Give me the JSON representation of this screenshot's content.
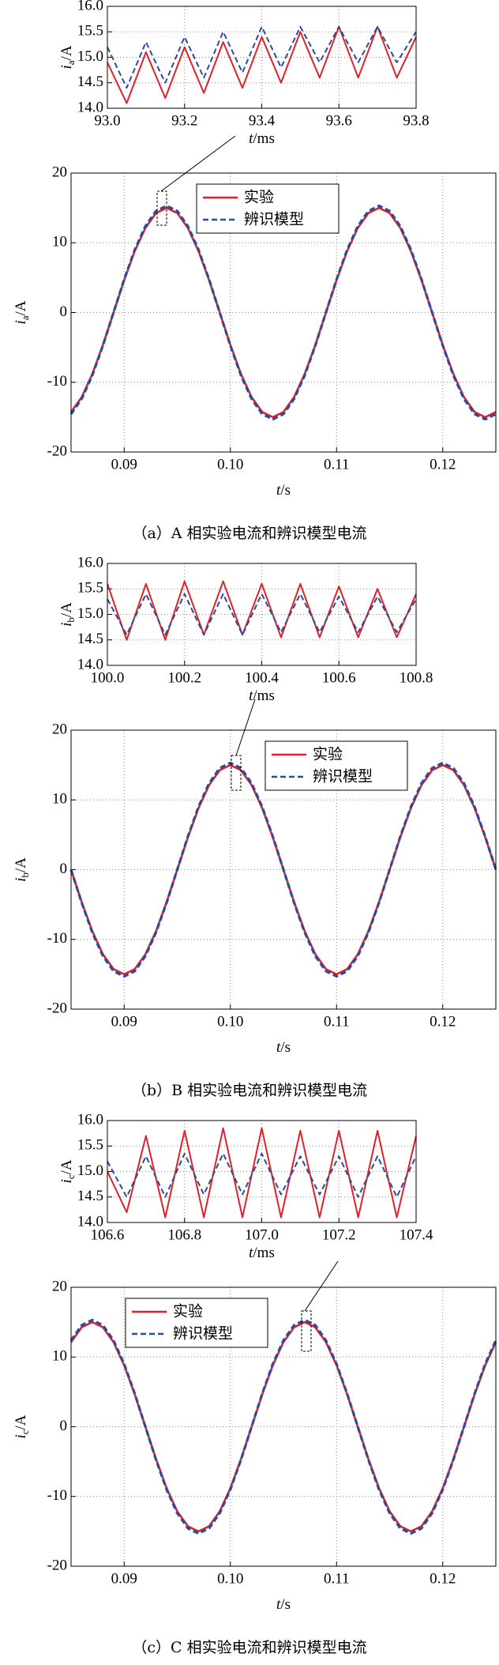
{
  "chart_data": [
    {
      "type": "line",
      "x": [
        93.0,
        93.05,
        93.1,
        93.15,
        93.2,
        93.25,
        93.3,
        93.35,
        93.4,
        93.45,
        93.5,
        93.55,
        93.6,
        93.65,
        93.7,
        93.75,
        93.8
      ],
      "series": [
        {
          "name": "实验",
          "color": "#e0202a",
          "dash": false,
          "values": [
            14.9,
            14.1,
            15.1,
            14.2,
            15.2,
            14.3,
            15.3,
            14.4,
            15.4,
            14.5,
            15.5,
            14.6,
            15.6,
            14.6,
            15.6,
            14.6,
            15.4
          ]
        },
        {
          "name": "辨识模型",
          "color": "#2a4d9b",
          "dash": true,
          "values": [
            15.2,
            14.4,
            15.3,
            14.5,
            15.4,
            14.6,
            15.5,
            14.7,
            15.6,
            14.8,
            15.6,
            14.9,
            15.6,
            14.9,
            15.6,
            14.9,
            15.5
          ]
        }
      ],
      "xlim": [
        93.0,
        93.8
      ],
      "ylim": [
        14,
        16
      ],
      "xticks": [
        {
          "value": 93,
          "label": "93.0"
        },
        93.2,
        93.4,
        93.6,
        93.8
      ],
      "yticks": [
        {
          "value": 14,
          "label": "14.0"
        },
        14.5,
        {
          "value": 15,
          "label": "15.0"
        },
        15.5,
        {
          "value": 16,
          "label": "16.0"
        }
      ],
      "grid": true,
      "xlabel": "t",
      "xlabel_unit": "/ms",
      "ylabel": "i",
      "ylabel_sub": "a",
      "ylabel_unit": "/A"
    },
    {
      "type": "line",
      "x": [
        0.085,
        0.086,
        0.087,
        0.088,
        0.089,
        0.09,
        0.091,
        0.092,
        0.093,
        0.094,
        0.095,
        0.096,
        0.097,
        0.098,
        0.099,
        0.1,
        0.101,
        0.102,
        0.103,
        0.104,
        0.105,
        0.106,
        0.107,
        0.108,
        0.109,
        0.11,
        0.111,
        0.112,
        0.113,
        0.114,
        0.115,
        0.116,
        0.117,
        0.118,
        0.119,
        0.12,
        0.121,
        0.122,
        0.123,
        0.124,
        0.125
      ],
      "series": [
        {
          "name": "实验",
          "color": "#e0202a",
          "dash": false,
          "values": [
            -14.27,
            -12.14,
            -8.82,
            -4.64,
            0,
            4.64,
            8.82,
            12.14,
            14.27,
            15,
            14.27,
            12.14,
            8.82,
            4.64,
            0,
            -4.64,
            -8.82,
            -12.14,
            -14.27,
            -15,
            -14.27,
            -12.14,
            -8.82,
            -4.64,
            0,
            4.64,
            8.82,
            12.14,
            14.27,
            15,
            14.27,
            12.14,
            8.82,
            4.64,
            0,
            -4.64,
            -8.82,
            -12.14,
            -14.27,
            -15,
            -14.27
          ]
        },
        {
          "name": "辨识模型",
          "color": "#2a4d9b",
          "dash": true,
          "values": [
            -14.56,
            -12.38,
            -9.0,
            -4.73,
            0,
            4.73,
            9.0,
            12.38,
            14.56,
            15.3,
            14.56,
            12.38,
            9.0,
            4.73,
            0,
            -4.73,
            -9.0,
            -12.38,
            -14.56,
            -15.3,
            -14.56,
            -12.38,
            -9.0,
            -4.73,
            0,
            4.73,
            9.0,
            12.38,
            14.56,
            15.3,
            14.56,
            12.38,
            9.0,
            4.73,
            0,
            -4.73,
            -9.0,
            -12.38,
            -14.56,
            -15.3,
            -14.56
          ]
        }
      ],
      "xlim": [
        0.085,
        0.125
      ],
      "ylim": [
        -20,
        20
      ],
      "xticks": [
        0.09,
        {
          "value": 0.1,
          "label": "0.10"
        },
        0.11,
        0.12
      ],
      "yticks": [
        -20,
        -10,
        0,
        10,
        20
      ],
      "grid": true,
      "legend": "upper center",
      "xlabel": "t",
      "xlabel_unit": "/s",
      "ylabel": "i",
      "ylabel_sub": "a",
      "ylabel_unit": "/A",
      "caption": "（a）A 相实验电流和辨识模型电流"
    },
    {
      "type": "line",
      "x": [
        100.0,
        100.05,
        100.1,
        100.15,
        100.2,
        100.25,
        100.3,
        100.35,
        100.4,
        100.45,
        100.5,
        100.55,
        100.6,
        100.65,
        100.7,
        100.75,
        100.8
      ],
      "series": [
        {
          "name": "实验",
          "color": "#e0202a",
          "dash": false,
          "values": [
            15.6,
            14.5,
            15.6,
            14.5,
            15.65,
            14.6,
            15.65,
            14.6,
            15.6,
            14.55,
            15.6,
            14.55,
            15.55,
            14.55,
            15.5,
            14.55,
            15.4
          ]
        },
        {
          "name": "辨识模型",
          "color": "#2a4d9b",
          "dash": true,
          "values": [
            15.3,
            14.6,
            15.4,
            14.6,
            15.4,
            14.6,
            15.4,
            14.6,
            15.4,
            14.65,
            15.4,
            14.65,
            15.35,
            14.65,
            15.35,
            14.65,
            15.3
          ]
        }
      ],
      "xlim": [
        100.0,
        100.8
      ],
      "ylim": [
        14,
        16
      ],
      "xticks": [
        {
          "value": 100,
          "label": "100.0"
        },
        100.2,
        100.4,
        100.6,
        100.8
      ],
      "yticks": [
        {
          "value": 14,
          "label": "14.0"
        },
        14.5,
        {
          "value": 15,
          "label": "15.0"
        },
        15.5,
        {
          "value": 16,
          "label": "16.0"
        }
      ],
      "grid": true,
      "xlabel": "t",
      "xlabel_unit": "/ms",
      "ylabel": "i",
      "ylabel_sub": "b",
      "ylabel_unit": "/A"
    },
    {
      "type": "line",
      "x": [
        0.085,
        0.086,
        0.087,
        0.088,
        0.089,
        0.09,
        0.091,
        0.092,
        0.093,
        0.094,
        0.095,
        0.096,
        0.097,
        0.098,
        0.099,
        0.1,
        0.101,
        0.102,
        0.103,
        0.104,
        0.105,
        0.106,
        0.107,
        0.108,
        0.109,
        0.11,
        0.111,
        0.112,
        0.113,
        0.114,
        0.115,
        0.116,
        0.117,
        0.118,
        0.119,
        0.12,
        0.121,
        0.122,
        0.123,
        0.124,
        0.125
      ],
      "series": [
        {
          "name": "实验",
          "color": "#e0202a",
          "dash": false,
          "values": [
            0,
            -4.64,
            -8.82,
            -12.14,
            -14.27,
            -15,
            -14.27,
            -12.14,
            -8.82,
            -4.64,
            0,
            4.64,
            8.82,
            12.14,
            14.27,
            15,
            14.27,
            12.14,
            8.82,
            4.64,
            0,
            -4.64,
            -8.82,
            -12.14,
            -14.27,
            -15,
            -14.27,
            -12.14,
            -8.82,
            -4.64,
            0,
            4.64,
            8.82,
            12.14,
            14.27,
            15,
            14.27,
            12.14,
            8.82,
            4.64,
            0
          ]
        },
        {
          "name": "辨识模型",
          "color": "#2a4d9b",
          "dash": true,
          "values": [
            0,
            -4.73,
            -9.0,
            -12.38,
            -14.56,
            -15.3,
            -14.56,
            -12.38,
            -9.0,
            -4.73,
            0,
            4.73,
            9.0,
            12.38,
            14.56,
            15.3,
            14.56,
            12.38,
            9.0,
            4.73,
            0,
            -4.73,
            -9.0,
            -12.38,
            -14.56,
            -15.3,
            -14.56,
            -12.38,
            -9.0,
            -4.73,
            0,
            4.73,
            9.0,
            12.38,
            14.56,
            15.3,
            14.56,
            12.38,
            9.0,
            4.73,
            0
          ]
        }
      ],
      "xlim": [
        0.085,
        0.125
      ],
      "ylim": [
        -20,
        20
      ],
      "xticks": [
        0.09,
        {
          "value": 0.1,
          "label": "0.10"
        },
        0.11,
        0.12
      ],
      "yticks": [
        -20,
        -10,
        0,
        10,
        20
      ],
      "grid": true,
      "legend": "upper right",
      "xlabel": "t",
      "xlabel_unit": "/s",
      "ylabel": "i",
      "ylabel_sub": "b",
      "ylabel_unit": "/A",
      "caption": "（b）B 相实验电流和辨识模型电流"
    },
    {
      "type": "line",
      "x": [
        106.6,
        106.65,
        106.7,
        106.75,
        106.8,
        106.85,
        106.9,
        106.95,
        107.0,
        107.05,
        107.1,
        107.15,
        107.2,
        107.25,
        107.3,
        107.35,
        107.4
      ],
      "series": [
        {
          "name": "实验",
          "color": "#e0202a",
          "dash": false,
          "values": [
            15.0,
            14.2,
            15.7,
            14.1,
            15.8,
            14.1,
            15.85,
            14.1,
            15.85,
            14.1,
            15.8,
            14.1,
            15.8,
            14.1,
            15.8,
            14.1,
            15.7
          ]
        },
        {
          "name": "辨识模型",
          "color": "#2a4d9b",
          "dash": true,
          "values": [
            15.2,
            14.5,
            15.3,
            14.5,
            15.35,
            14.55,
            15.35,
            14.55,
            15.35,
            14.55,
            15.3,
            14.55,
            15.3,
            14.5,
            15.3,
            14.5,
            15.3
          ]
        }
      ],
      "xlim": [
        106.6,
        107.4
      ],
      "ylim": [
        14,
        16
      ],
      "xticks": [
        106.6,
        106.8,
        {
          "value": 107,
          "label": "107.0"
        },
        107.2,
        107.4
      ],
      "yticks": [
        {
          "value": 14,
          "label": "14.0"
        },
        14.5,
        {
          "value": 15,
          "label": "15.0"
        },
        15.5,
        {
          "value": 16,
          "label": "16.0"
        }
      ],
      "grid": true,
      "xlabel": "t",
      "xlabel_unit": "/ms",
      "ylabel": "i",
      "ylabel_sub": "c",
      "ylabel_unit": "/A"
    },
    {
      "type": "line",
      "x": [
        0.085,
        0.086,
        0.087,
        0.088,
        0.089,
        0.09,
        0.091,
        0.092,
        0.093,
        0.094,
        0.095,
        0.096,
        0.097,
        0.098,
        0.099,
        0.1,
        0.101,
        0.102,
        0.103,
        0.104,
        0.105,
        0.106,
        0.107,
        0.108,
        0.109,
        0.11,
        0.111,
        0.112,
        0.113,
        0.114,
        0.115,
        0.116,
        0.117,
        0.118,
        0.119,
        0.12,
        0.121,
        0.122,
        0.123,
        0.124,
        0.125
      ],
      "series": [
        {
          "name": "实验",
          "color": "#e0202a",
          "dash": false,
          "values": [
            12.14,
            14.27,
            15,
            14.27,
            12.14,
            8.82,
            4.64,
            0,
            -4.64,
            -8.82,
            -12.14,
            -14.27,
            -15,
            -14.27,
            -12.14,
            -8.82,
            -4.64,
            0,
            4.64,
            8.82,
            12.14,
            14.27,
            15,
            14.27,
            12.14,
            8.82,
            4.64,
            0,
            -4.64,
            -8.82,
            -12.14,
            -14.27,
            -15,
            -14.27,
            -12.14,
            -8.82,
            -4.64,
            0,
            4.64,
            8.82,
            12.14
          ]
        },
        {
          "name": "辨识模型",
          "color": "#2a4d9b",
          "dash": true,
          "values": [
            12.38,
            14.56,
            15.3,
            14.56,
            12.38,
            9.0,
            4.73,
            0,
            -4.73,
            -9.0,
            -12.38,
            -14.56,
            -15.3,
            -14.56,
            -12.38,
            -9.0,
            -4.73,
            0,
            4.73,
            9.0,
            12.38,
            14.56,
            15.3,
            14.56,
            12.38,
            9.0,
            4.73,
            0,
            -4.73,
            -9.0,
            -12.38,
            -14.56,
            -15.3,
            -14.56,
            -12.38,
            -9.0,
            -4.73,
            0,
            4.73,
            9.0,
            12.38
          ]
        }
      ],
      "xlim": [
        0.085,
        0.125
      ],
      "ylim": [
        -20,
        20
      ],
      "xticks": [
        0.09,
        {
          "value": 0.1,
          "label": "0.10"
        },
        0.11,
        0.12
      ],
      "yticks": [
        -20,
        -10,
        0,
        10,
        20
      ],
      "grid": true,
      "legend": "upper left",
      "xlabel": "t",
      "xlabel_unit": "/s",
      "ylabel": "i",
      "ylabel_sub": "c",
      "ylabel_unit": "/A",
      "caption": "（c）C 相实验电流和辨识模型电流"
    }
  ]
}
